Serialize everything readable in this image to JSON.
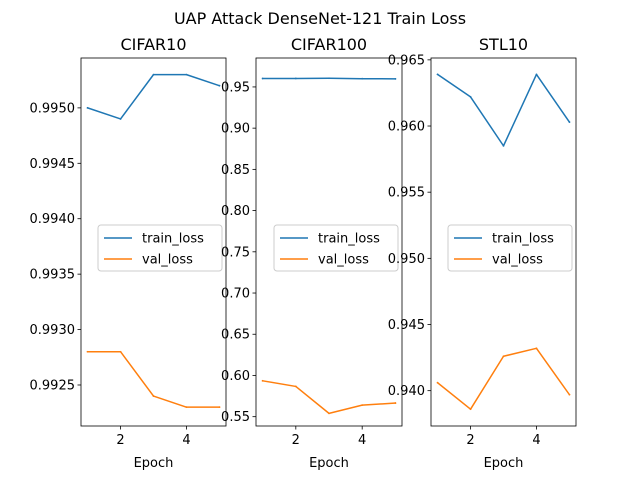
{
  "figure": {
    "title": "UAP Attack DenseNet-121 Train Loss",
    "series_colors": {
      "train_loss": "#1f77b4",
      "val_loss": "#ff7f0e"
    }
  },
  "chart_data": [
    {
      "type": "line",
      "title": "CIFAR10",
      "xlabel": "Epoch",
      "ylabel": "",
      "x": [
        1,
        2,
        3,
        4,
        5
      ],
      "series": [
        {
          "name": "train_loss",
          "values": [
            0.995,
            0.9949,
            0.9953,
            0.9953,
            0.9952
          ]
        },
        {
          "name": "val_loss",
          "values": [
            0.9928,
            0.9928,
            0.9924,
            0.9923,
            0.9923
          ]
        }
      ],
      "xlim": [
        0.8,
        5.2
      ],
      "ylim": [
        0.99213,
        0.99545
      ],
      "xticks": [
        2,
        4
      ],
      "xtick_labels": [
        "2",
        "4"
      ],
      "yticks": [
        0.9925,
        0.993,
        0.9935,
        0.994,
        0.9945,
        0.995
      ],
      "ytick_labels": [
        "0.9925",
        "0.9930",
        "0.9935",
        "0.9940",
        "0.9945",
        "0.9950"
      ],
      "legend": {
        "placement": "center-right",
        "entries": [
          "train_loss",
          "val_loss"
        ]
      },
      "grid": false
    },
    {
      "type": "line",
      "title": "CIFAR100",
      "xlabel": "Epoch",
      "ylabel": "",
      "x": [
        1,
        2,
        3,
        4,
        5
      ],
      "series": [
        {
          "name": "train_loss",
          "values": [
            0.9602,
            0.9603,
            0.9605,
            0.96,
            0.9598
          ]
        },
        {
          "name": "val_loss",
          "values": [
            0.5935,
            0.5867,
            0.554,
            0.564,
            0.5665
          ]
        }
      ],
      "xlim": [
        0.8,
        5.2
      ],
      "ylim": [
        0.5387,
        0.9851
      ],
      "xticks": [
        2,
        4
      ],
      "xtick_labels": [
        "2",
        "4"
      ],
      "yticks": [
        0.55,
        0.6,
        0.65,
        0.7,
        0.75,
        0.8,
        0.85,
        0.9,
        0.95
      ],
      "ytick_labels": [
        "0.55",
        "0.60",
        "0.65",
        "0.70",
        "0.75",
        "0.80",
        "0.85",
        "0.90",
        "0.95"
      ],
      "legend": {
        "placement": "center-right",
        "entries": [
          "train_loss",
          "val_loss"
        ]
      },
      "grid": false
    },
    {
      "type": "line",
      "title": "STL10",
      "xlabel": "Epoch",
      "ylabel": "",
      "x": [
        1,
        2,
        3,
        4,
        5
      ],
      "series": [
        {
          "name": "train_loss",
          "values": [
            0.9639,
            0.9622,
            0.9585,
            0.9639,
            0.9603
          ]
        },
        {
          "name": "val_loss",
          "values": [
            0.9406,
            0.9386,
            0.9426,
            0.9432,
            0.9397
          ]
        }
      ],
      "xlim": [
        0.8,
        5.2
      ],
      "ylim": [
        0.93733,
        0.96514
      ],
      "xticks": [
        2,
        4
      ],
      "xtick_labels": [
        "2",
        "4"
      ],
      "yticks": [
        0.94,
        0.945,
        0.95,
        0.955,
        0.96,
        0.965
      ],
      "ytick_labels": [
        "0.940",
        "0.945",
        "0.950",
        "0.955",
        "0.960",
        "0.965"
      ],
      "legend": {
        "placement": "center-right",
        "entries": [
          "train_loss",
          "val_loss"
        ]
      },
      "grid": false
    }
  ]
}
